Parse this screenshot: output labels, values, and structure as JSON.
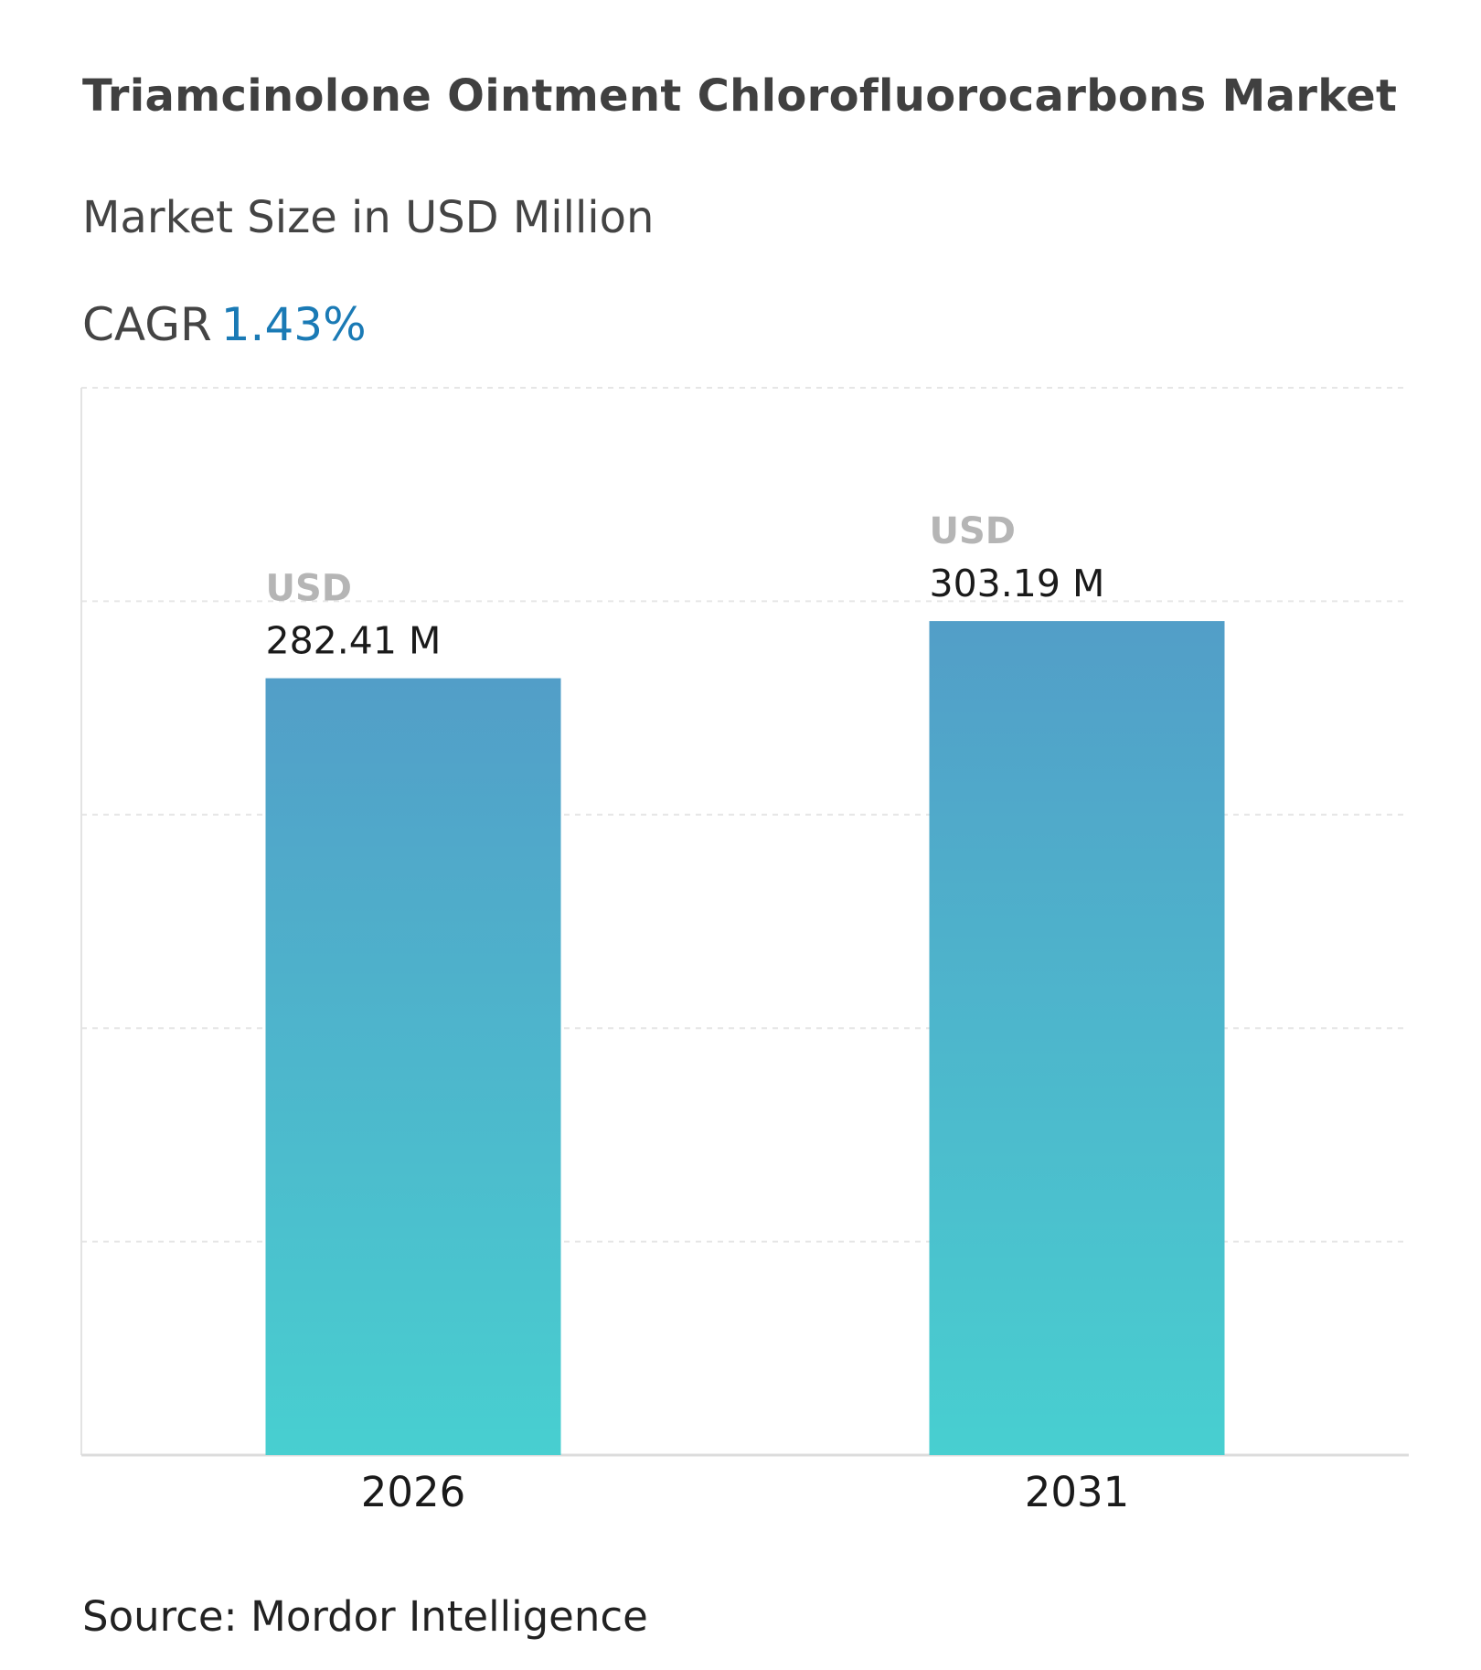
{
  "header": {
    "title": "Triamcinolone Ointment Chlorofluorocarbons Market",
    "subtitle": "Market Size in USD Million",
    "cagr_label": "CAGR",
    "cagr_value": "1.43%"
  },
  "footer": {
    "source": "Source: Mordor Intelligence"
  },
  "colors": {
    "bar_top": "#529ec8",
    "bar_bottom": "#48cfd0",
    "cagr": "#1a7ab5",
    "usd_label": "#b5b5b5"
  },
  "chart_data": {
    "type": "bar",
    "categories": [
      "2026",
      "2031"
    ],
    "values": [
      282.41,
      303.19
    ],
    "data_labels": [
      {
        "prefix": "USD",
        "value": "282.41 M"
      },
      {
        "prefix": "USD",
        "value": "303.19 M"
      }
    ],
    "title": "Triamcinolone Ointment Chlorofluorocarbons Market",
    "subtitle": "Market Size in USD Million",
    "xlabel": "",
    "ylabel": "",
    "ylim": [
      0,
      388
    ],
    "grid": true,
    "legend": "none"
  }
}
